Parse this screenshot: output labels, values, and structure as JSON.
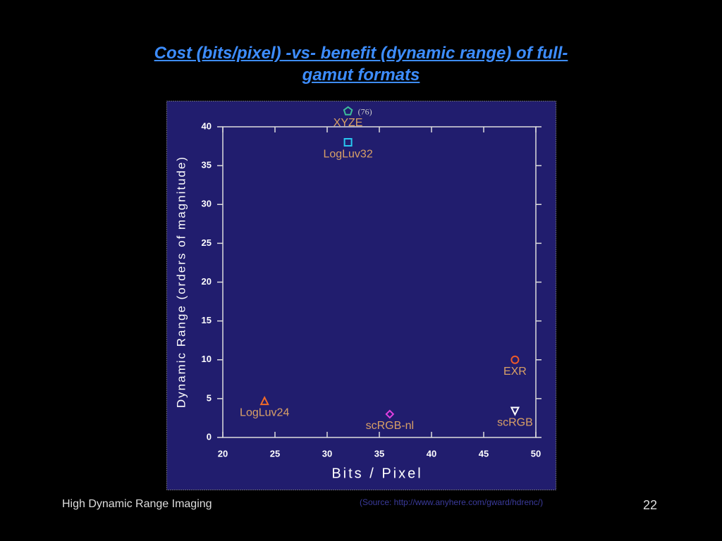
{
  "chart_data": {
    "type": "scatter",
    "title": "Cost (bits/pixel) -vs- benefit (dynamic range) of full-gamut formats",
    "xlabel": "Bits / Pixel",
    "ylabel": "Dynamic Range (orders of magnitude)",
    "xlim": [
      20,
      50
    ],
    "xticks": [
      20,
      25,
      30,
      35,
      40,
      45,
      50
    ],
    "ylim": [
      0,
      40
    ],
    "yticks": [
      0,
      5,
      10,
      15,
      20,
      25,
      30,
      35,
      40
    ],
    "series": [
      {
        "name": "XYZE",
        "color": "#3dbf9a",
        "marker": "pentagon",
        "x": [
          32
        ],
        "y": [
          42
        ],
        "annotation": "(76)"
      },
      {
        "name": "LogLuv32",
        "color": "#28c8f0",
        "marker": "square",
        "x": [
          32
        ],
        "y": [
          38
        ]
      },
      {
        "name": "EXR",
        "color": "#f05a28",
        "marker": "circle",
        "x": [
          48
        ],
        "y": [
          10
        ]
      },
      {
        "name": "LogLuv24",
        "color": "#f06a28",
        "marker": "triangle",
        "x": [
          24
        ],
        "y": [
          4.7
        ]
      },
      {
        "name": "scRGB-nl",
        "color": "#e040e0",
        "marker": "diamond",
        "x": [
          36
        ],
        "y": [
          3
        ]
      },
      {
        "name": "scRGB",
        "color": "#ffffff",
        "marker": "down-triangle",
        "x": [
          48
        ],
        "y": [
          3.4
        ]
      }
    ]
  },
  "footer": {
    "left": "High Dynamic Range Imaging",
    "source": "(Source: http://www.anyhere.com/gward/hdrenc/)",
    "page": "22"
  }
}
